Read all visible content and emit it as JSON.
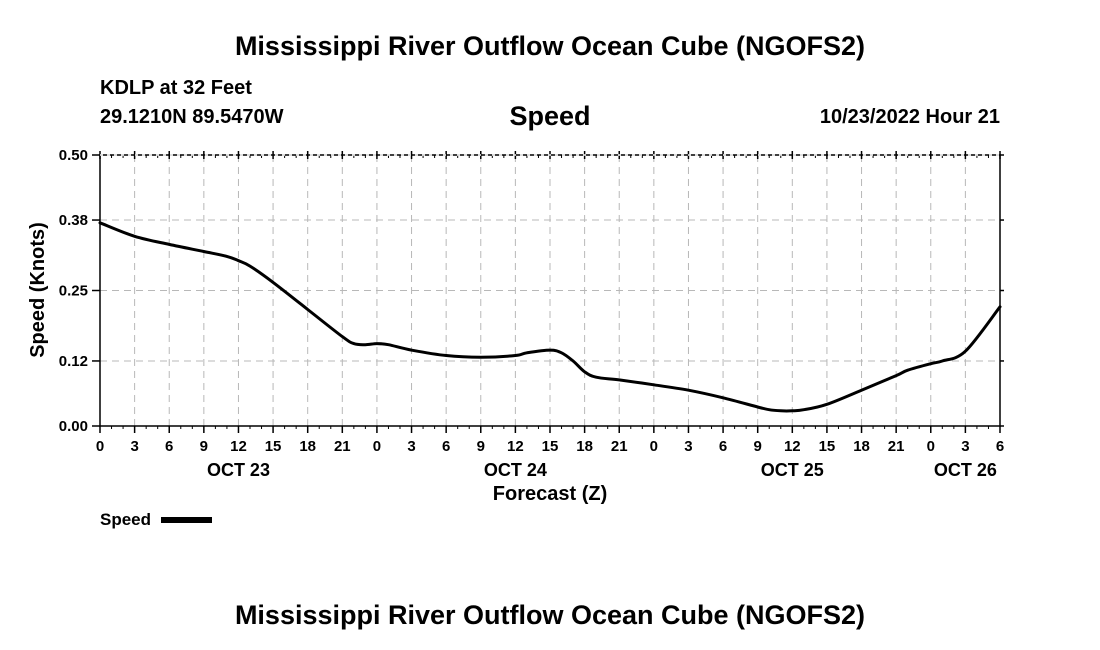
{
  "page": {
    "title_top": "Mississippi River Outflow Ocean Cube (NGOFS2)",
    "title_bottom": "Mississippi River Outflow Ocean Cube (NGOFS2)",
    "station": "KDLP at 32 Feet",
    "coords": "29.1210N  89.5470W",
    "datetime": "10/23/2022 Hour 21"
  },
  "chart_data": {
    "type": "line",
    "title": "Speed",
    "xlabel": "Forecast (Z)",
    "ylabel": "Speed (Knots)",
    "x_unit": "hours since 10/23/2022 00Z",
    "xlim": [
      0,
      78
    ],
    "ylim": [
      0,
      0.5
    ],
    "y_ticks": [
      0.0,
      0.12,
      0.25,
      0.38,
      0.5
    ],
    "y_tick_labels": [
      "0.00",
      "0.12",
      "0.25",
      "0.38",
      "0.50"
    ],
    "x_ticks": [
      0,
      3,
      6,
      9,
      12,
      15,
      18,
      21,
      24,
      27,
      30,
      33,
      36,
      39,
      42,
      45,
      48,
      51,
      54,
      57,
      60,
      63,
      66,
      69,
      72,
      75,
      78
    ],
    "x_tick_labels": [
      "0",
      "3",
      "6",
      "9",
      "12",
      "15",
      "18",
      "21",
      "0",
      "3",
      "6",
      "9",
      "12",
      "15",
      "18",
      "21",
      "0",
      "3",
      "6",
      "9",
      "12",
      "15",
      "18",
      "21",
      "0",
      "3",
      "6"
    ],
    "date_labels": [
      {
        "x": 12,
        "label": "OCT 23"
      },
      {
        "x": 36,
        "label": "OCT 24"
      },
      {
        "x": 60,
        "label": "OCT 25"
      },
      {
        "x": 75,
        "label": "OCT 26"
      }
    ],
    "grid": true,
    "legend": "bottom-left",
    "series": [
      {
        "name": "Speed",
        "color": "#000000",
        "x": [
          0,
          3,
          6,
          9,
          11,
          12,
          13,
          15,
          18,
          21,
          22,
          23,
          24,
          25,
          27,
          30,
          33,
          36,
          37,
          39,
          40,
          41,
          42,
          43,
          45,
          48,
          51,
          54,
          57,
          58,
          59,
          60,
          61,
          63,
          66,
          69,
          70,
          72,
          73,
          75,
          78
        ],
        "y": [
          0.375,
          0.35,
          0.335,
          0.322,
          0.313,
          0.305,
          0.295,
          0.265,
          0.215,
          0.165,
          0.152,
          0.15,
          0.152,
          0.15,
          0.14,
          0.13,
          0.127,
          0.13,
          0.135,
          0.14,
          0.135,
          0.12,
          0.1,
          0.09,
          0.085,
          0.076,
          0.066,
          0.052,
          0.035,
          0.03,
          0.028,
          0.028,
          0.03,
          0.04,
          0.066,
          0.093,
          0.103,
          0.115,
          0.12,
          0.138,
          0.22
        ]
      }
    ]
  }
}
